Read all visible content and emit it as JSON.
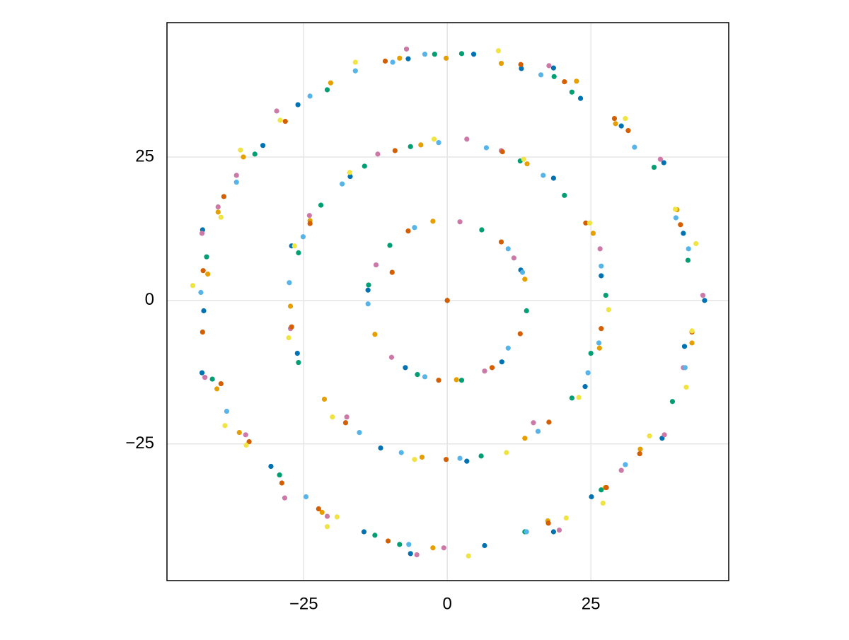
{
  "chart_data": {
    "type": "scatter",
    "xlim": [
      -48.8,
      49.0
    ],
    "ylim": [
      -48.8,
      48.4
    ],
    "xticks": [
      {
        "value": -25,
        "label": "−25"
      },
      0,
      25
    ],
    "yticks": [
      {
        "value": -25,
        "label": "−25"
      },
      0,
      25
    ],
    "grid": true,
    "series": [
      {
        "color": "#0072b2",
        "x": [
          4.6,
          -6.8,
          12.9,
          18.5,
          23.2,
          30.3,
          37.7,
          41.1,
          44.8,
          41.3,
          37.4,
          25.1,
          18.5,
          6.5,
          -6.4,
          -14.5,
          -30.7,
          -42.7,
          -42.4,
          -42.6,
          -32.1,
          -26.0,
          18.5,
          26.8,
          24.0,
          3.4,
          -11.6,
          -27.1,
          -26.1,
          -16.9,
          12.8,
          9.5,
          -13.8,
          -7.3,
          0
        ],
        "y": [
          42.9,
          42.1,
          40.4,
          40.5,
          35.2,
          30.4,
          24.0,
          11.7,
          0,
          -8.0,
          -24.0,
          -34.2,
          -40.3,
          -42.7,
          -44.1,
          -40.3,
          -28.9,
          -12.6,
          -1.8,
          12.3,
          27.0,
          34.1,
          21.3,
          4.3,
          -15.0,
          -28.0,
          -25.7,
          9.5,
          -9.2,
          21.6,
          5.3,
          -10.7,
          1.8,
          -11.7,
          0
        ]
      },
      {
        "color": "#e69f00",
        "x": [
          -0.2,
          9.4,
          22.5,
          29.3,
          40.0,
          42.6,
          33.6,
          27.5,
          17.5,
          -2.5,
          -21.8,
          -36.2,
          -40.1,
          -41.7,
          -39.9,
          -35.5,
          -20.3,
          -8.3,
          -4.6,
          13.9,
          25.4,
          26.5,
          13.5,
          -4.4,
          -21.4,
          -27.3,
          -23.9,
          -2.5,
          13.5,
          -12.6,
          1.6
        ],
        "y": [
          42.2,
          41.3,
          38.2,
          30.8,
          15.8,
          -7.4,
          -25.9,
          -32.6,
          -38.4,
          -43.1,
          -36.9,
          -23.0,
          -15.4,
          4.6,
          15.4,
          25.0,
          37.9,
          42.2,
          27.1,
          23.8,
          11.7,
          -8.3,
          -24.0,
          -27.3,
          -17.2,
          -1.0,
          13.9,
          13.8,
          3.7,
          -5.9,
          -13.8
        ]
      },
      {
        "color": "#009e73",
        "x": [
          -2.2,
          2.5,
          18.6,
          21.7,
          36.0,
          41.9,
          39.2,
          26.8,
          13.5,
          -8.3,
          -12.6,
          -29.2,
          -40.9,
          -41.9,
          -33.5,
          -20.9,
          -14.4,
          -6.4,
          12.7,
          20.4,
          27.6,
          25.0,
          21.7,
          5.9,
          -25.9,
          -25.9,
          -22.0,
          -10.0,
          6.0,
          13.8,
          -13.7,
          2.5,
          -5.2
        ],
        "y": [
          42.9,
          43.0,
          39.0,
          36.3,
          23.2,
          7.0,
          -17.6,
          -33.0,
          -40.3,
          -42.5,
          -40.9,
          -30.4,
          -13.7,
          7.6,
          25.5,
          36.7,
          23.4,
          26.8,
          24.3,
          18.3,
          0.9,
          -9.2,
          -17.0,
          -27.1,
          -10.8,
          8.3,
          16.6,
          9.6,
          12.3,
          -1.8,
          2.7,
          -13.9,
          -12.9
        ]
      },
      {
        "color": "#cc79a7",
        "x": [
          -7.1,
          17.7,
          -29.7,
          -36.7,
          37.1,
          44.5,
          41.1,
          37.8,
          30.3,
          19.5,
          -0.6,
          -5.3,
          -20.9,
          -28.3,
          -35.1,
          -42.2,
          -42.7,
          -39.9,
          3.4,
          9.4,
          26.6,
          15.0,
          -17.5,
          -24.0,
          -12.1,
          -27.3,
          2.2,
          -12.4,
          -9.7,
          6.5,
          11.6
        ],
        "y": [
          43.8,
          40.9,
          33.0,
          21.8,
          24.6,
          0.9,
          -11.7,
          -23.4,
          -29.6,
          -40.0,
          -43.1,
          -44.3,
          -37.6,
          -34.4,
          -23.4,
          -13.4,
          11.7,
          16.3,
          28.1,
          26.1,
          9.0,
          -21.3,
          -20.3,
          14.8,
          25.5,
          -4.9,
          13.7,
          6.2,
          -9.9,
          -12.3,
          7.4
        ]
      },
      {
        "color": "#56b4e9",
        "x": [
          -3.9,
          -9.5,
          16.3,
          -23.9,
          32.6,
          39.8,
          42.0,
          41.4,
          31.0,
          13.8,
          -6.7,
          -24.6,
          -38.4,
          -42.9,
          -36.7,
          -16.0,
          -1.5,
          6.8,
          16.7,
          26.8,
          26.4,
          24.5,
          15.8,
          2.2,
          -8.0,
          -15.3,
          -27.5,
          -25.1,
          -18.3,
          -5.7,
          10.6,
          13.1,
          -13.8,
          10.6,
          -3.9
        ],
        "y": [
          42.9,
          41.5,
          39.3,
          35.6,
          26.7,
          14.4,
          9.0,
          -11.7,
          -28.6,
          -40.3,
          -42.5,
          -34.2,
          -19.3,
          1.4,
          20.6,
          40.0,
          27.5,
          26.6,
          21.8,
          6.0,
          -7.4,
          -12.6,
          -22.8,
          -27.5,
          -26.5,
          -23.0,
          3.1,
          11.1,
          20.3,
          12.7,
          9.0,
          4.9,
          -0.6,
          -8.3,
          -13.3
        ]
      },
      {
        "color": "#d55e00",
        "x": [
          -10.8,
          12.8,
          20.4,
          29.1,
          31.5,
          40.6,
          42.6,
          33.5,
          27.7,
          17.6,
          -10.3,
          -22.4,
          -28.8,
          -34.5,
          -39.4,
          -42.6,
          -42.5,
          -38.9,
          -28.2,
          -9.1,
          9.6,
          24.1,
          26.8,
          17.7,
          -0.2,
          -17.7,
          -27.1,
          -23.9,
          -6.8,
          -9.6,
          9.4,
          12.7,
          7.8,
          -1.5,
          0
        ],
        "y": [
          41.7,
          41.1,
          38.1,
          31.7,
          29.6,
          13.2,
          -5.5,
          -26.7,
          -32.6,
          -38.8,
          -41.9,
          -36.3,
          -31.8,
          -24.6,
          -14.5,
          -5.5,
          5.2,
          18.1,
          31.2,
          26.1,
          25.9,
          13.5,
          -4.9,
          -21.2,
          -27.7,
          -21.3,
          -4.6,
          13.4,
          12.1,
          4.9,
          10.2,
          -5.8,
          -11.7,
          -13.9,
          0
        ]
      },
      {
        "color": "#f0e442",
        "x": [
          8.9,
          -16.0,
          -29.1,
          -36.0,
          31.0,
          39.7,
          43.3,
          42.6,
          41.6,
          35.2,
          27.1,
          20.7,
          3.7,
          -20.9,
          -19.2,
          -35.0,
          -38.7,
          -44.3,
          -39.4,
          -2.3,
          13.3,
          24.8,
          28.1,
          22.9,
          10.3,
          -5.7,
          -20.0,
          -27.6,
          -26.6,
          -17.0
        ],
        "y": [
          43.5,
          41.5,
          31.4,
          26.2,
          31.7,
          15.9,
          9.9,
          -5.3,
          -15.1,
          -23.6,
          -35.3,
          -37.9,
          -44.5,
          -39.4,
          -37.7,
          -25.2,
          -21.8,
          2.6,
          14.5,
          28.1,
          24.6,
          13.5,
          -1.6,
          -16.9,
          -26.5,
          -27.7,
          -20.3,
          -6.5,
          9.5,
          22.3
        ]
      }
    ]
  }
}
